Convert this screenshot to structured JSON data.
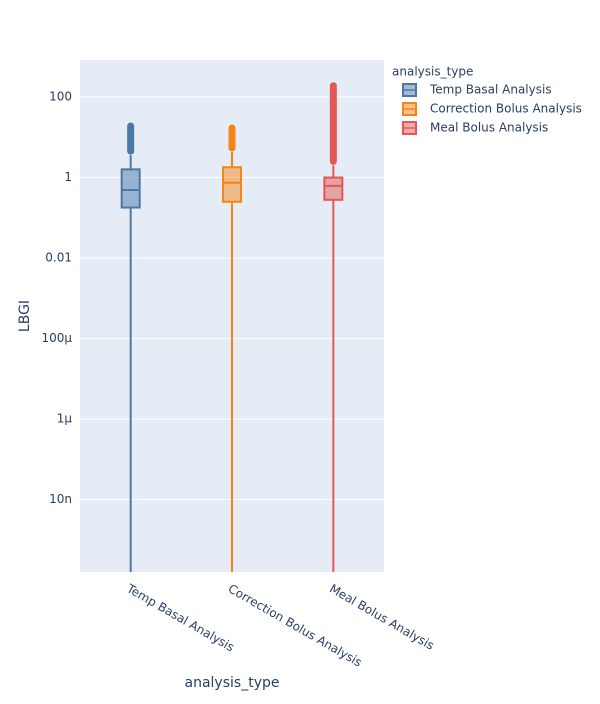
{
  "chart_data": {
    "type": "box",
    "y_label": "LBGI",
    "x_label": "analysis_type",
    "legend_title": "analysis_type",
    "log_y": true,
    "grid": true,
    "legend_position": "right",
    "categories": [
      "Temp Basal Analysis",
      "Correction Bolus Analysis",
      "Meal Bolus Analysis"
    ],
    "ylim": [
      1.6e-10,
      830
    ],
    "yticks": [
      {
        "value": 1e-08,
        "label": "10n"
      },
      {
        "value": 1e-06,
        "label": "1µ"
      },
      {
        "value": 0.0001,
        "label": "100µ"
      },
      0.01,
      1,
      100
    ],
    "series": [
      {
        "name": "Temp Basal Analysis",
        "color": "#4c78a8",
        "lowerfence": 1e-11,
        "q1": 0.18,
        "median": 0.49,
        "q3": 1.6,
        "upperfence": 3.6,
        "outlier_max": 19
      },
      {
        "name": "Correction Bolus Analysis",
        "color": "#f58518",
        "lowerfence": 1e-11,
        "q1": 0.25,
        "median": 0.74,
        "q3": 1.8,
        "upperfence": 4.3,
        "outlier_max": 17
      },
      {
        "name": "Meal Bolus Analysis",
        "color": "#e45756",
        "lowerfence": 1e-11,
        "q1": 0.28,
        "median": 0.62,
        "q3": 1.0,
        "upperfence": 2.0,
        "outlier_max": 190
      }
    ]
  }
}
